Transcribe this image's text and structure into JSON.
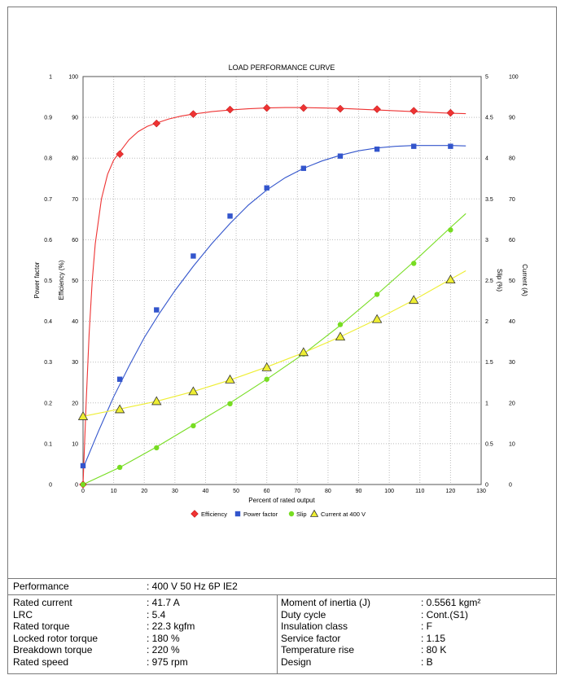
{
  "chart_data": {
    "type": "line",
    "title": "LOAD PERFORMANCE CURVE",
    "xlabel": "Percent of rated output",
    "xlim": [
      0,
      130
    ],
    "x_ticks": [
      "0",
      "10",
      "20",
      "30",
      "40",
      "50",
      "60",
      "70",
      "80",
      "90",
      "100",
      "110",
      "120",
      "130"
    ],
    "grid": true,
    "legend_position": "bottom",
    "axes": {
      "power_factor": {
        "label": "Power factor",
        "side": "left",
        "range": [
          0,
          1
        ],
        "ticks": [
          "0",
          "0.1",
          "0.2",
          "0.3",
          "0.4",
          "0.5",
          "0.6",
          "0.7",
          "0.8",
          "0.9",
          "1"
        ]
      },
      "efficiency": {
        "label": "Efficiency (%)",
        "side": "left",
        "range": [
          0,
          100
        ],
        "ticks": [
          "0",
          "10",
          "20",
          "30",
          "40",
          "50",
          "60",
          "70",
          "80",
          "90",
          "100"
        ]
      },
      "slip": {
        "label": "Slip (%)",
        "side": "right",
        "range": [
          0,
          5
        ],
        "ticks": [
          "0",
          "0.5",
          "1",
          "1.5",
          "2",
          "2.5",
          "3",
          "3.5",
          "4",
          "4.5",
          "5"
        ]
      },
      "current": {
        "label": "Current (A)",
        "side": "right",
        "range": [
          0,
          100
        ],
        "ticks": [
          "0",
          "10",
          "20",
          "30",
          "40",
          "50",
          "60",
          "70",
          "80",
          "90",
          "100"
        ]
      }
    },
    "series": [
      {
        "name": "Efficiency",
        "axis": "efficiency",
        "color": "#ee3333",
        "marker": "diamond",
        "x": [
          0,
          12,
          24,
          36,
          48,
          60,
          72,
          84,
          96,
          108,
          120
        ],
        "y": [
          0,
          81,
          88.5,
          90.8,
          91.9,
          92.3,
          92.3,
          92.1,
          92.0,
          91.6,
          91.1
        ],
        "curve_x": [
          0,
          1,
          2,
          3,
          4,
          6,
          8,
          10,
          12,
          15,
          18,
          21,
          24,
          28,
          32,
          36,
          42,
          48,
          54,
          60,
          66,
          72,
          78,
          84,
          90,
          96,
          102,
          108,
          114,
          120,
          125
        ],
        "curve_y": [
          0,
          20,
          37,
          50,
          59,
          70,
          76,
          79.5,
          81.5,
          84.5,
          86.5,
          87.8,
          88.6,
          89.6,
          90.3,
          90.8,
          91.4,
          91.8,
          92.1,
          92.3,
          92.4,
          92.4,
          92.3,
          92.2,
          92.0,
          91.8,
          91.6,
          91.4,
          91.2,
          91.0,
          90.9
        ]
      },
      {
        "name": "Power factor",
        "axis": "power_factor",
        "color": "#3355cc",
        "marker": "square",
        "x": [
          0,
          12,
          24,
          36,
          48,
          60,
          72,
          84,
          96,
          108,
          120
        ],
        "y": [
          0.046,
          0.258,
          0.428,
          0.56,
          0.658,
          0.727,
          0.775,
          0.805,
          0.822,
          0.829,
          0.829
        ],
        "curve_x": [
          0,
          5,
          10,
          15,
          20,
          25,
          30,
          36,
          42,
          48,
          54,
          60,
          66,
          72,
          78,
          84,
          90,
          96,
          102,
          108,
          114,
          120,
          125
        ],
        "curve_y": [
          0.04,
          0.13,
          0.215,
          0.29,
          0.36,
          0.42,
          0.475,
          0.535,
          0.59,
          0.64,
          0.685,
          0.722,
          0.752,
          0.775,
          0.793,
          0.807,
          0.818,
          0.825,
          0.829,
          0.831,
          0.831,
          0.831,
          0.83
        ]
      },
      {
        "name": "Slip",
        "axis": "slip",
        "color": "#77dd22",
        "marker": "circle",
        "x": [
          0,
          12,
          24,
          36,
          48,
          60,
          72,
          84,
          96,
          108,
          120
        ],
        "y": [
          0,
          0.21,
          0.45,
          0.72,
          0.99,
          1.29,
          1.6,
          1.96,
          2.33,
          2.71,
          3.12
        ],
        "curve_x": [
          0,
          12,
          24,
          36,
          48,
          60,
          72,
          84,
          96,
          108,
          120,
          125
        ],
        "curve_y": [
          0,
          0.21,
          0.46,
          0.73,
          1.0,
          1.29,
          1.6,
          1.95,
          2.33,
          2.73,
          3.15,
          3.32
        ]
      },
      {
        "name": "Current at 400 V",
        "axis": "current",
        "color": "#eeee33",
        "marker": "triangle",
        "x": [
          0,
          12,
          24,
          36,
          48,
          60,
          72,
          84,
          96,
          108,
          120
        ],
        "y": [
          16.7,
          18.4,
          20.4,
          22.8,
          25.7,
          28.7,
          32.4,
          36.2,
          40.5,
          45.2,
          50.2
        ],
        "curve_x": [
          0,
          12,
          24,
          36,
          48,
          60,
          72,
          84,
          96,
          108,
          120,
          125
        ],
        "curve_y": [
          16.7,
          18.5,
          20.4,
          22.8,
          25.6,
          28.8,
          32.3,
          36.2,
          40.5,
          45.2,
          50.3,
          52.4
        ]
      }
    ]
  },
  "specs": {
    "header": {
      "label": "Performance",
      "value": ": 400 V 50 Hz 6P IE2"
    },
    "left": [
      {
        "label": "Rated current",
        "value": ": 41.7 A"
      },
      {
        "label": "LRC",
        "value": ": 5.4"
      },
      {
        "label": "Rated torque",
        "value": ": 22.3 kgfm"
      },
      {
        "label": "Locked rotor torque",
        "value": ": 180 %"
      },
      {
        "label": "Breakdown torque",
        "value": ": 220 %"
      },
      {
        "label": "Rated speed",
        "value": ": 975 rpm"
      }
    ],
    "right": [
      {
        "label": "Moment of inertia (J)",
        "value": ": 0.5561 kgm²"
      },
      {
        "label": "Duty cycle",
        "value": ": Cont.(S1)"
      },
      {
        "label": "Insulation class",
        "value": ": F"
      },
      {
        "label": "Service factor",
        "value": ": 1.15"
      },
      {
        "label": "Temperature rise",
        "value": ": 80 K"
      },
      {
        "label": "Design",
        "value": ": B"
      }
    ]
  }
}
